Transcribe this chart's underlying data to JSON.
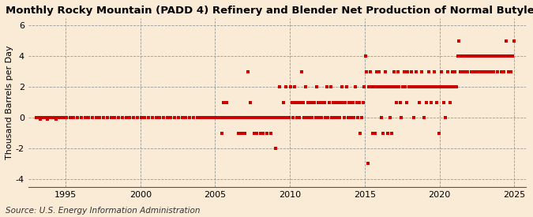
{
  "title": "Monthly Rocky Mountain (PADD 4) Refinery and Blender Net Production of Normal Butylene",
  "ylabel": "Thousand Barrels per Day",
  "source": "Source: U.S. Energy Information Administration",
  "background_color": "#faebd7",
  "plot_background_color": "#faebd7",
  "dot_color": "#cc0000",
  "dot_size": 5,
  "xlim": [
    1992.5,
    2025.8
  ],
  "ylim": [
    -4.5,
    6.5
  ],
  "yticks": [
    -4,
    -2,
    0,
    2,
    4,
    6
  ],
  "xticks": [
    1995,
    2000,
    2005,
    2010,
    2015,
    2020,
    2025
  ],
  "grid_color": "#999999",
  "title_fontsize": 9.5,
  "axis_fontsize": 8,
  "source_fontsize": 7.5,
  "manual_data": [
    [
      1993,
      1,
      0
    ],
    [
      1993,
      2,
      0
    ],
    [
      1993,
      3,
      0
    ],
    [
      1993,
      4,
      -0.1
    ],
    [
      1993,
      5,
      0
    ],
    [
      1993,
      6,
      0
    ],
    [
      1993,
      7,
      0
    ],
    [
      1993,
      8,
      0
    ],
    [
      1993,
      9,
      0
    ],
    [
      1993,
      10,
      -0.1
    ],
    [
      1993,
      11,
      0
    ],
    [
      1993,
      12,
      0
    ],
    [
      1994,
      1,
      0
    ],
    [
      1994,
      2,
      0
    ],
    [
      1994,
      3,
      0
    ],
    [
      1994,
      4,
      0
    ],
    [
      1994,
      5,
      -0.1
    ],
    [
      1994,
      6,
      0
    ],
    [
      1994,
      7,
      0
    ],
    [
      1994,
      8,
      0
    ],
    [
      1994,
      9,
      0
    ],
    [
      1994,
      10,
      0
    ],
    [
      1994,
      11,
      0
    ],
    [
      1994,
      12,
      0
    ],
    [
      1995,
      1,
      0
    ],
    [
      1995,
      4,
      0
    ],
    [
      1995,
      7,
      0
    ],
    [
      1995,
      10,
      0
    ],
    [
      1996,
      1,
      0
    ],
    [
      1996,
      4,
      0
    ],
    [
      1996,
      7,
      0
    ],
    [
      1996,
      10,
      0
    ],
    [
      1997,
      1,
      0
    ],
    [
      1997,
      4,
      0
    ],
    [
      1997,
      7,
      0
    ],
    [
      1997,
      10,
      0
    ],
    [
      1998,
      1,
      0
    ],
    [
      1998,
      4,
      0
    ],
    [
      1998,
      7,
      0
    ],
    [
      1998,
      10,
      0
    ],
    [
      1999,
      1,
      0
    ],
    [
      1999,
      4,
      0
    ],
    [
      1999,
      7,
      0
    ],
    [
      1999,
      10,
      0
    ],
    [
      2000,
      1,
      0
    ],
    [
      2000,
      4,
      0
    ],
    [
      2000,
      7,
      0
    ],
    [
      2000,
      10,
      0
    ],
    [
      2001,
      1,
      0
    ],
    [
      2001,
      4,
      0
    ],
    [
      2001,
      7,
      0
    ],
    [
      2001,
      10,
      0
    ],
    [
      2002,
      1,
      0
    ],
    [
      2002,
      4,
      0
    ],
    [
      2002,
      7,
      0
    ],
    [
      2002,
      10,
      0
    ],
    [
      2003,
      1,
      0
    ],
    [
      2003,
      4,
      0
    ],
    [
      2003,
      7,
      0
    ],
    [
      2003,
      10,
      0
    ],
    [
      2004,
      1,
      0
    ],
    [
      2004,
      2,
      0
    ],
    [
      2004,
      3,
      0
    ],
    [
      2004,
      4,
      0
    ],
    [
      2004,
      5,
      0
    ],
    [
      2004,
      6,
      0
    ],
    [
      2004,
      7,
      0
    ],
    [
      2004,
      8,
      0
    ],
    [
      2004,
      9,
      0
    ],
    [
      2004,
      10,
      0
    ],
    [
      2004,
      11,
      0
    ],
    [
      2004,
      12,
      0
    ],
    [
      2005,
      1,
      0
    ],
    [
      2005,
      2,
      0
    ],
    [
      2005,
      3,
      0
    ],
    [
      2005,
      4,
      0
    ],
    [
      2005,
      5,
      0
    ],
    [
      2005,
      6,
      -1
    ],
    [
      2005,
      7,
      1
    ],
    [
      2005,
      8,
      0
    ],
    [
      2005,
      9,
      0
    ],
    [
      2005,
      10,
      1
    ],
    [
      2005,
      11,
      0
    ],
    [
      2005,
      12,
      0
    ],
    [
      2006,
      1,
      0
    ],
    [
      2006,
      2,
      0
    ],
    [
      2006,
      3,
      0
    ],
    [
      2006,
      4,
      0
    ],
    [
      2006,
      5,
      0
    ],
    [
      2006,
      6,
      0
    ],
    [
      2006,
      7,
      -1
    ],
    [
      2006,
      8,
      0
    ],
    [
      2006,
      9,
      0
    ],
    [
      2006,
      10,
      -1
    ],
    [
      2006,
      11,
      0
    ],
    [
      2006,
      12,
      -1
    ],
    [
      2007,
      1,
      0
    ],
    [
      2007,
      2,
      0
    ],
    [
      2007,
      3,
      3
    ],
    [
      2007,
      4,
      0
    ],
    [
      2007,
      5,
      1
    ],
    [
      2007,
      6,
      0
    ],
    [
      2007,
      7,
      0
    ],
    [
      2007,
      8,
      -1
    ],
    [
      2007,
      9,
      0
    ],
    [
      2007,
      10,
      -1
    ],
    [
      2007,
      11,
      0
    ],
    [
      2007,
      12,
      0
    ],
    [
      2008,
      1,
      -1
    ],
    [
      2008,
      2,
      0
    ],
    [
      2008,
      3,
      -1
    ],
    [
      2008,
      4,
      0
    ],
    [
      2008,
      5,
      0
    ],
    [
      2008,
      6,
      -1
    ],
    [
      2008,
      7,
      0
    ],
    [
      2008,
      8,
      0
    ],
    [
      2008,
      9,
      -1
    ],
    [
      2008,
      10,
      0
    ],
    [
      2008,
      11,
      0
    ],
    [
      2008,
      12,
      0
    ],
    [
      2009,
      1,
      -2
    ],
    [
      2009,
      2,
      0
    ],
    [
      2009,
      3,
      0
    ],
    [
      2009,
      4,
      2
    ],
    [
      2009,
      5,
      0
    ],
    [
      2009,
      6,
      0
    ],
    [
      2009,
      7,
      1
    ],
    [
      2009,
      8,
      0
    ],
    [
      2009,
      9,
      2
    ],
    [
      2009,
      10,
      0
    ],
    [
      2009,
      11,
      0
    ],
    [
      2009,
      12,
      0
    ],
    [
      2010,
      1,
      2
    ],
    [
      2010,
      2,
      1
    ],
    [
      2010,
      3,
      0
    ],
    [
      2010,
      4,
      2
    ],
    [
      2010,
      5,
      1
    ],
    [
      2010,
      6,
      0
    ],
    [
      2010,
      7,
      1
    ],
    [
      2010,
      8,
      0
    ],
    [
      2010,
      9,
      1
    ],
    [
      2010,
      10,
      3
    ],
    [
      2010,
      11,
      1
    ],
    [
      2010,
      12,
      0
    ],
    [
      2011,
      1,
      2
    ],
    [
      2011,
      2,
      0
    ],
    [
      2011,
      3,
      1
    ],
    [
      2011,
      4,
      0
    ],
    [
      2011,
      5,
      1
    ],
    [
      2011,
      6,
      0
    ],
    [
      2011,
      7,
      1
    ],
    [
      2011,
      8,
      1
    ],
    [
      2011,
      9,
      0
    ],
    [
      2011,
      10,
      2
    ],
    [
      2011,
      11,
      1
    ],
    [
      2011,
      12,
      0
    ],
    [
      2012,
      1,
      1
    ],
    [
      2012,
      2,
      0
    ],
    [
      2012,
      3,
      1
    ],
    [
      2012,
      4,
      1
    ],
    [
      2012,
      5,
      0
    ],
    [
      2012,
      6,
      2
    ],
    [
      2012,
      7,
      0
    ],
    [
      2012,
      8,
      1
    ],
    [
      2012,
      9,
      2
    ],
    [
      2012,
      10,
      0
    ],
    [
      2012,
      11,
      1
    ],
    [
      2012,
      12,
      0
    ],
    [
      2013,
      1,
      1
    ],
    [
      2013,
      2,
      0
    ],
    [
      2013,
      3,
      1
    ],
    [
      2013,
      4,
      0
    ],
    [
      2013,
      5,
      1
    ],
    [
      2013,
      6,
      2
    ],
    [
      2013,
      7,
      1
    ],
    [
      2013,
      8,
      0
    ],
    [
      2013,
      9,
      1
    ],
    [
      2013,
      10,
      2
    ],
    [
      2013,
      11,
      0
    ],
    [
      2013,
      12,
      1
    ],
    [
      2014,
      1,
      1
    ],
    [
      2014,
      2,
      0
    ],
    [
      2014,
      3,
      1
    ],
    [
      2014,
      4,
      0
    ],
    [
      2014,
      5,
      2
    ],
    [
      2014,
      6,
      1
    ],
    [
      2014,
      7,
      0
    ],
    [
      2014,
      8,
      1
    ],
    [
      2014,
      9,
      -1
    ],
    [
      2014,
      10,
      0
    ],
    [
      2014,
      11,
      1
    ],
    [
      2014,
      12,
      2
    ],
    [
      2015,
      1,
      4
    ],
    [
      2015,
      2,
      3
    ],
    [
      2015,
      3,
      -3
    ],
    [
      2015,
      4,
      2
    ],
    [
      2015,
      5,
      3
    ],
    [
      2015,
      6,
      2
    ],
    [
      2015,
      7,
      -1
    ],
    [
      2015,
      8,
      2
    ],
    [
      2015,
      9,
      -1
    ],
    [
      2015,
      10,
      3
    ],
    [
      2015,
      11,
      2
    ],
    [
      2015,
      12,
      3
    ],
    [
      2016,
      1,
      2
    ],
    [
      2016,
      2,
      0
    ],
    [
      2016,
      3,
      -1
    ],
    [
      2016,
      4,
      2
    ],
    [
      2016,
      5,
      3
    ],
    [
      2016,
      6,
      2
    ],
    [
      2016,
      7,
      -1
    ],
    [
      2016,
      8,
      2
    ],
    [
      2016,
      9,
      0
    ],
    [
      2016,
      10,
      -1
    ],
    [
      2016,
      11,
      2
    ],
    [
      2016,
      12,
      3
    ],
    [
      2017,
      1,
      2
    ],
    [
      2017,
      2,
      1
    ],
    [
      2017,
      3,
      3
    ],
    [
      2017,
      4,
      2
    ],
    [
      2017,
      5,
      1
    ],
    [
      2017,
      6,
      0
    ],
    [
      2017,
      7,
      2
    ],
    [
      2017,
      8,
      3
    ],
    [
      2017,
      9,
      2
    ],
    [
      2017,
      10,
      1
    ],
    [
      2017,
      11,
      3
    ],
    [
      2017,
      12,
      2
    ],
    [
      2018,
      1,
      2
    ],
    [
      2018,
      2,
      3
    ],
    [
      2018,
      3,
      2
    ],
    [
      2018,
      4,
      0
    ],
    [
      2018,
      5,
      2
    ],
    [
      2018,
      6,
      3
    ],
    [
      2018,
      7,
      2
    ],
    [
      2018,
      8,
      1
    ],
    [
      2018,
      9,
      2
    ],
    [
      2018,
      10,
      3
    ],
    [
      2018,
      11,
      2
    ],
    [
      2018,
      12,
      0
    ],
    [
      2019,
      1,
      2
    ],
    [
      2019,
      2,
      1
    ],
    [
      2019,
      3,
      2
    ],
    [
      2019,
      4,
      3
    ],
    [
      2019,
      5,
      2
    ],
    [
      2019,
      6,
      1
    ],
    [
      2019,
      7,
      2
    ],
    [
      2019,
      8,
      3
    ],
    [
      2019,
      9,
      2
    ],
    [
      2019,
      10,
      1
    ],
    [
      2019,
      11,
      2
    ],
    [
      2019,
      12,
      -1
    ],
    [
      2020,
      1,
      2
    ],
    [
      2020,
      2,
      3
    ],
    [
      2020,
      3,
      2
    ],
    [
      2020,
      4,
      1
    ],
    [
      2020,
      5,
      0
    ],
    [
      2020,
      6,
      2
    ],
    [
      2020,
      7,
      3
    ],
    [
      2020,
      8,
      2
    ],
    [
      2020,
      9,
      1
    ],
    [
      2020,
      10,
      2
    ],
    [
      2020,
      11,
      3
    ],
    [
      2020,
      12,
      2
    ],
    [
      2021,
      1,
      3
    ],
    [
      2021,
      2,
      2
    ],
    [
      2021,
      3,
      4
    ],
    [
      2021,
      4,
      5
    ],
    [
      2021,
      5,
      3
    ],
    [
      2021,
      6,
      4
    ],
    [
      2021,
      7,
      3
    ],
    [
      2021,
      8,
      4
    ],
    [
      2021,
      9,
      3
    ],
    [
      2021,
      10,
      4
    ],
    [
      2021,
      11,
      3
    ],
    [
      2021,
      12,
      4
    ],
    [
      2022,
      1,
      4
    ],
    [
      2022,
      2,
      3
    ],
    [
      2022,
      3,
      4
    ],
    [
      2022,
      4,
      3
    ],
    [
      2022,
      5,
      4
    ],
    [
      2022,
      6,
      3
    ],
    [
      2022,
      7,
      4
    ],
    [
      2022,
      8,
      3
    ],
    [
      2022,
      9,
      4
    ],
    [
      2022,
      10,
      3
    ],
    [
      2022,
      11,
      4
    ],
    [
      2022,
      12,
      3
    ],
    [
      2023,
      1,
      4
    ],
    [
      2023,
      2,
      3
    ],
    [
      2023,
      3,
      4
    ],
    [
      2023,
      4,
      3
    ],
    [
      2023,
      5,
      4
    ],
    [
      2023,
      6,
      3
    ],
    [
      2023,
      7,
      4
    ],
    [
      2023,
      8,
      3
    ],
    [
      2023,
      9,
      4
    ],
    [
      2023,
      10,
      4
    ],
    [
      2023,
      11,
      3
    ],
    [
      2023,
      12,
      4
    ],
    [
      2024,
      1,
      4
    ],
    [
      2024,
      2,
      3
    ],
    [
      2024,
      3,
      4
    ],
    [
      2024,
      4,
      3
    ],
    [
      2024,
      5,
      4
    ],
    [
      2024,
      6,
      5
    ],
    [
      2024,
      7,
      4
    ],
    [
      2024,
      8,
      3
    ],
    [
      2024,
      9,
      4
    ],
    [
      2024,
      10,
      3
    ],
    [
      2024,
      11,
      4
    ],
    [
      2024,
      12,
      5
    ]
  ]
}
